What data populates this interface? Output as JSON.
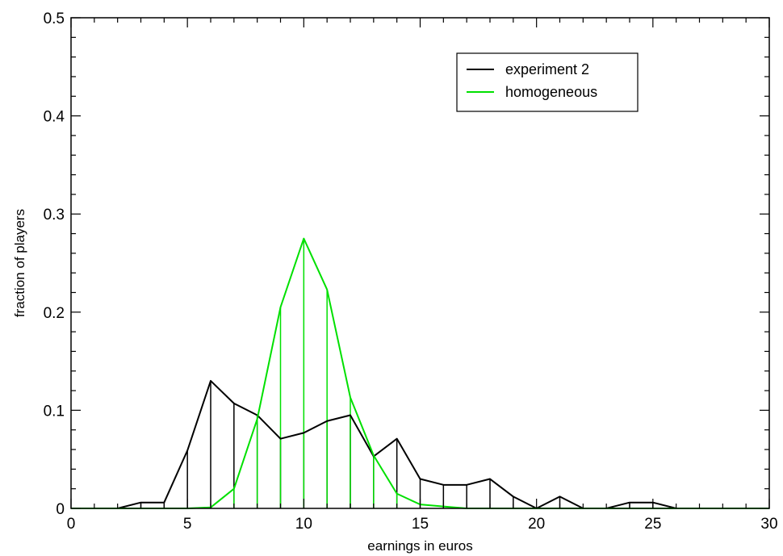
{
  "chart_data": {
    "type": "line",
    "xlabel": "earnings in euros",
    "ylabel": "fraction of players",
    "xlim": [
      0,
      30
    ],
    "ylim": [
      0,
      0.5
    ],
    "x_ticks": [
      "0",
      "5",
      "10",
      "15",
      "20",
      "25",
      "30"
    ],
    "y_ticks": [
      "0",
      "0.1",
      "0.2",
      "0.3",
      "0.4",
      "0.5"
    ],
    "grid": false,
    "legend_position": "top-right",
    "series": [
      {
        "name": "experiment 2",
        "color": "#000000",
        "x": [
          0,
          1,
          2,
          3,
          4,
          5,
          6,
          7,
          8,
          9,
          10,
          11,
          12,
          13,
          14,
          15,
          16,
          17,
          18,
          19,
          20,
          21,
          22,
          23,
          24,
          25,
          26,
          27,
          28,
          29,
          30
        ],
        "values": [
          0,
          0,
          0,
          0.006,
          0.006,
          0.059,
          0.13,
          0.107,
          0.095,
          0.071,
          0.077,
          0.089,
          0.095,
          0.053,
          0.071,
          0.03,
          0.024,
          0.024,
          0.03,
          0.012,
          0,
          0.012,
          0,
          0,
          0.006,
          0.006,
          0,
          0,
          0,
          0,
          0
        ]
      },
      {
        "name": "homogeneous",
        "color": "#00e000",
        "x": [
          0,
          1,
          2,
          3,
          4,
          5,
          6,
          7,
          8,
          9,
          10,
          11,
          12,
          13,
          14,
          15,
          16,
          17,
          18,
          19,
          20,
          21,
          22,
          23,
          24,
          25,
          26,
          27,
          28,
          29,
          30
        ],
        "values": [
          0,
          0,
          0,
          0,
          0,
          0,
          0.001,
          0.02,
          0.091,
          0.205,
          0.275,
          0.223,
          0.113,
          0.054,
          0.015,
          0.004,
          0.002,
          0,
          0,
          0,
          0,
          0,
          0,
          0,
          0,
          0,
          0,
          0,
          0,
          0,
          0
        ]
      }
    ]
  }
}
